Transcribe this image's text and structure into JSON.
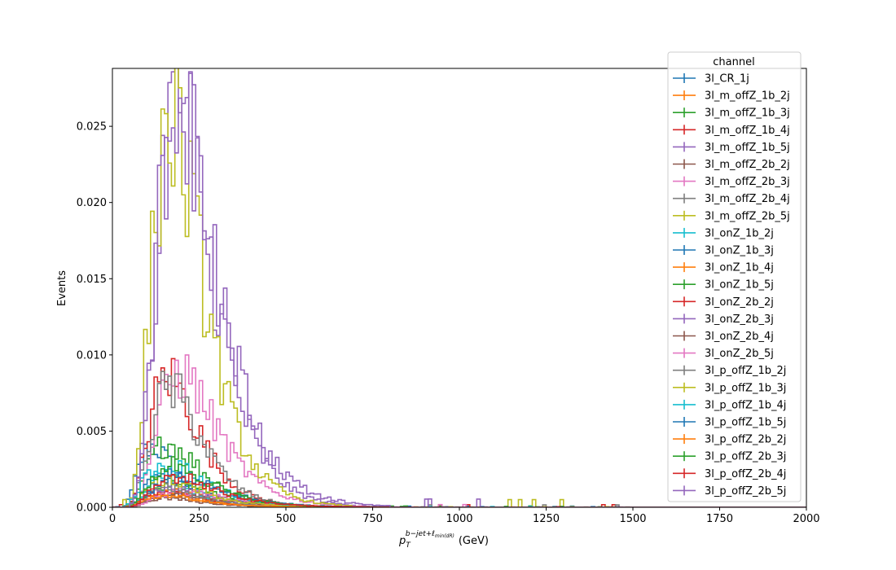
{
  "chart_data": {
    "type": "step-histogram",
    "xlabel": "p_T^{b-jet+ℓ_{min(dR)}} (GeV)",
    "xlabel_parts": {
      "base": "p",
      "sub": "T",
      "sup": "b−jet+ℓ",
      "sup_sub": "min(dR)",
      "units": "(GeV)"
    },
    "ylabel": "Events",
    "xlim": [
      0,
      2000
    ],
    "ylim": [
      0,
      0.0288
    ],
    "xticks": [
      0,
      250,
      500,
      750,
      1000,
      1250,
      1500,
      1750,
      2000
    ],
    "xtick_labels": [
      "0",
      "250",
      "500",
      "750",
      "1000",
      "1250",
      "1500",
      "1750",
      "2000"
    ],
    "yticks": [
      0,
      0.005,
      0.01,
      0.015,
      0.02,
      0.025
    ],
    "ytick_labels": [
      "0.000",
      "0.005",
      "0.010",
      "0.015",
      "0.020",
      "0.025"
    ],
    "legend": {
      "title": "channel",
      "position": "upper-right"
    },
    "bin_width": 10,
    "series": [
      {
        "name": "3l_CR_1j",
        "color": "#1f77b4",
        "peak": 0.004,
        "mode": 115,
        "sigma": 0.45
      },
      {
        "name": "3l_m_offZ_1b_2j",
        "color": "#ff7f0e",
        "peak": 0.001,
        "mode": 140,
        "sigma": 0.5
      },
      {
        "name": "3l_m_offZ_1b_3j",
        "color": "#2ca02c",
        "peak": 0.0042,
        "mode": 160,
        "sigma": 0.45
      },
      {
        "name": "3l_m_offZ_1b_4j",
        "color": "#d62728",
        "peak": 0.0086,
        "mode": 160,
        "sigma": 0.42
      },
      {
        "name": "3l_m_offZ_1b_5j",
        "color": "#9467bd",
        "peak": 0.0272,
        "mode": 190,
        "sigma": 0.4
      },
      {
        "name": "3l_m_offZ_2b_2j",
        "color": "#8c564b",
        "peak": 0.0006,
        "mode": 150,
        "sigma": 0.5
      },
      {
        "name": "3l_m_offZ_2b_3j",
        "color": "#e377c2",
        "peak": 0.0088,
        "mode": 195,
        "sigma": 0.42
      },
      {
        "name": "3l_m_offZ_2b_4j",
        "color": "#7f7f7f",
        "peak": 0.0078,
        "mode": 165,
        "sigma": 0.42
      },
      {
        "name": "3l_m_offZ_2b_5j",
        "color": "#bcbd22",
        "peak": 0.0252,
        "mode": 170,
        "sigma": 0.42
      },
      {
        "name": "3l_onZ_1b_2j",
        "color": "#17becf",
        "peak": 0.0024,
        "mode": 130,
        "sigma": 0.48
      },
      {
        "name": "3l_onZ_1b_3j",
        "color": "#1f77b4",
        "peak": 0.002,
        "mode": 150,
        "sigma": 0.48
      },
      {
        "name": "3l_onZ_1b_4j",
        "color": "#ff7f0e",
        "peak": 0.0012,
        "mode": 170,
        "sigma": 0.48
      },
      {
        "name": "3l_onZ_1b_5j",
        "color": "#2ca02c",
        "peak": 0.0016,
        "mode": 180,
        "sigma": 0.48
      },
      {
        "name": "3l_onZ_2b_2j",
        "color": "#d62728",
        "peak": 0.001,
        "mode": 150,
        "sigma": 0.5
      },
      {
        "name": "3l_onZ_2b_3j",
        "color": "#9467bd",
        "peak": 0.0012,
        "mode": 170,
        "sigma": 0.5
      },
      {
        "name": "3l_onZ_2b_4j",
        "color": "#8c564b",
        "peak": 0.0008,
        "mode": 190,
        "sigma": 0.5
      },
      {
        "name": "3l_onZ_2b_5j",
        "color": "#e377c2",
        "peak": 0.001,
        "mode": 200,
        "sigma": 0.5
      },
      {
        "name": "3l_p_offZ_1b_2j",
        "color": "#7f7f7f",
        "peak": 0.0014,
        "mode": 140,
        "sigma": 0.5
      },
      {
        "name": "3l_p_offZ_1b_3j",
        "color": "#bcbd22",
        "peak": 0.0018,
        "mode": 160,
        "sigma": 0.48
      },
      {
        "name": "3l_p_offZ_1b_4j",
        "color": "#17becf",
        "peak": 0.0026,
        "mode": 175,
        "sigma": 0.46
      },
      {
        "name": "3l_p_offZ_1b_5j",
        "color": "#1f77b4",
        "peak": 0.0022,
        "mode": 190,
        "sigma": 0.46
      },
      {
        "name": "3l_p_offZ_2b_2j",
        "color": "#ff7f0e",
        "peak": 0.0008,
        "mode": 150,
        "sigma": 0.5
      },
      {
        "name": "3l_p_offZ_2b_3j",
        "color": "#2ca02c",
        "peak": 0.0028,
        "mode": 175,
        "sigma": 0.46
      },
      {
        "name": "3l_p_offZ_2b_4j",
        "color": "#d62728",
        "peak": 0.002,
        "mode": 185,
        "sigma": 0.46
      },
      {
        "name": "3l_p_offZ_2b_5j",
        "color": "#9467bd",
        "peak": 0.027,
        "mode": 195,
        "sigma": 0.42
      }
    ]
  }
}
